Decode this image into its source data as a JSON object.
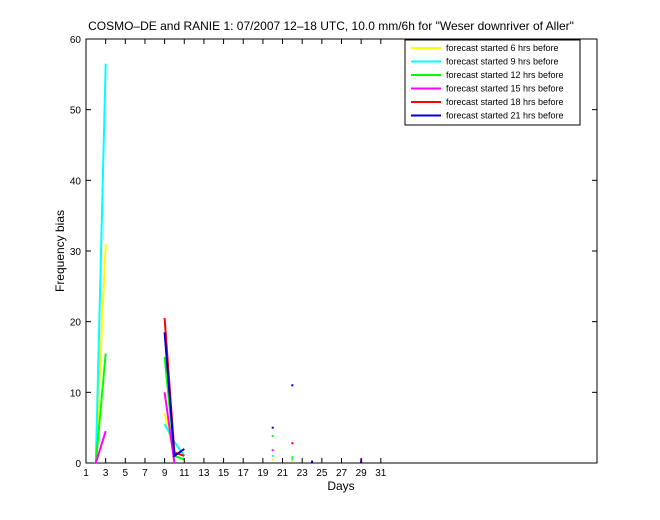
{
  "chart_data": {
    "type": "line",
    "title": "COSMO–DE and RANIE 1: 07/2007 12–18 UTC, 10.0 mm/6h for \"Weser downriver of Aller\"",
    "xlabel": "Days",
    "ylabel": "Frequency bias",
    "xlim": [
      1,
      53
    ],
    "ylim": [
      0,
      60
    ],
    "xticks": [
      1,
      3,
      5,
      7,
      9,
      11,
      13,
      15,
      17,
      19,
      21,
      23,
      25,
      27,
      29,
      31
    ],
    "yticks": [
      0,
      10,
      20,
      30,
      40,
      50,
      60
    ],
    "legend_position": "top-right",
    "grid": false,
    "series": [
      {
        "name": "forecast started 6 hrs before",
        "color": "#ffff00",
        "segments": [
          [
            [
              2,
              0
            ],
            [
              3,
              31
            ]
          ],
          [
            [
              9,
              7
            ],
            [
              10,
              1
            ]
          ]
        ],
        "markers": [
          [
            20,
            0.5
          ],
          [
            22,
            0.3
          ]
        ]
      },
      {
        "name": "forecast started 9 hrs before",
        "color": "#00ffff",
        "segments": [
          [
            [
              2,
              0
            ],
            [
              3,
              56.5
            ]
          ],
          [
            [
              9,
              5.5
            ],
            [
              10,
              3
            ],
            [
              11,
              1
            ]
          ]
        ],
        "markers": [
          [
            20,
            1
          ],
          [
            22,
            0.5
          ]
        ]
      },
      {
        "name": "forecast started 12 hrs before",
        "color": "#00ff00",
        "segments": [
          [
            [
              2,
              0
            ],
            [
              3,
              15.5
            ]
          ],
          [
            [
              9,
              15
            ],
            [
              10,
              1
            ],
            [
              11,
              0.5
            ]
          ]
        ],
        "markers": [
          [
            20,
            3.8
          ],
          [
            22,
            0.8
          ]
        ]
      },
      {
        "name": "forecast started 15 hrs before",
        "color": "#ff00ff",
        "segments": [
          [
            [
              2,
              0
            ],
            [
              3,
              4.5
            ]
          ],
          [
            [
              9,
              10
            ],
            [
              10,
              0
            ]
          ]
        ],
        "markers": [
          [
            20,
            1.8
          ],
          [
            29,
            0.5
          ]
        ]
      },
      {
        "name": "forecast started 18 hrs before",
        "color": "#ff0000",
        "segments": [
          [
            [
              9,
              20.5
            ],
            [
              10,
              1.5
            ],
            [
              11,
              1
            ]
          ]
        ],
        "markers": [
          [
            22,
            2.8
          ]
        ]
      },
      {
        "name": "forecast started 21 hrs before",
        "color": "#0000cc",
        "segments": [
          [
            [
              9,
              18.5
            ],
            [
              10,
              1
            ],
            [
              11,
              2
            ]
          ]
        ],
        "markers": [
          [
            20,
            5
          ],
          [
            22,
            11
          ],
          [
            24,
            0.2
          ],
          [
            29,
            0.2
          ]
        ]
      }
    ]
  }
}
